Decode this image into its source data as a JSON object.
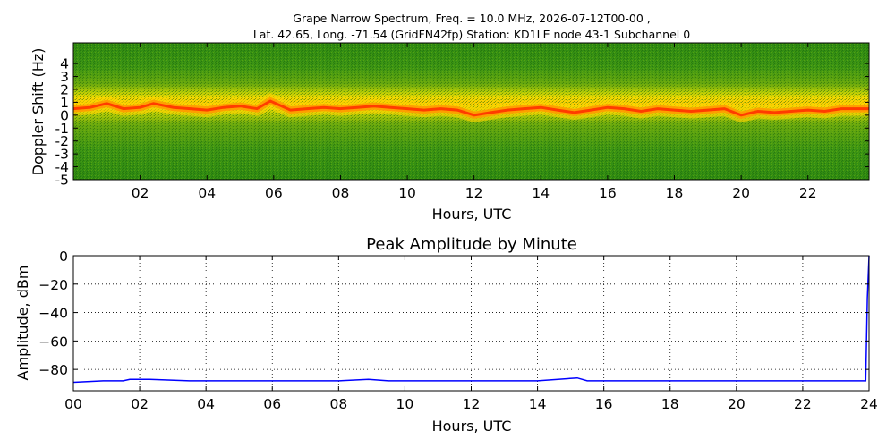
{
  "chart_data": [
    {
      "type": "heatmap",
      "title_line1": "Grape Narrow Spectrum, Freq. = 10.0 MHz, 2026-07-12T00-00 ,",
      "title_line2": "Lat.  42.65, Long. -71.54 (GridFN42fp) Station: KD1LE node 43-1 Subchannel 0",
      "xlabel": "Hours, UTC",
      "ylabel": "Doppler Shift (Hz)",
      "xlim": [
        0,
        23.83
      ],
      "ylim": [
        -5,
        5
      ],
      "x_ticks": [
        2,
        4,
        6,
        8,
        10,
        12,
        14,
        16,
        18,
        20,
        22
      ],
      "x_tick_labels": [
        "02",
        "04",
        "06",
        "08",
        "10",
        "12",
        "14",
        "16",
        "18",
        "20",
        "22"
      ],
      "y_ticks": [
        4,
        3,
        2,
        1,
        0,
        -1,
        -2,
        -3,
        -4,
        -5
      ],
      "y_tick_labels": [
        "4",
        "3",
        "2",
        "1",
        "0",
        "-1",
        "-2",
        "-3",
        "-4",
        "-5"
      ],
      "trace_hz": [
        [
          0,
          0.5
        ],
        [
          0.5,
          0.6
        ],
        [
          1,
          0.9
        ],
        [
          1.5,
          0.5
        ],
        [
          2,
          0.6
        ],
        [
          2.4,
          0.9
        ],
        [
          3,
          0.6
        ],
        [
          3.5,
          0.5
        ],
        [
          4,
          0.4
        ],
        [
          4.5,
          0.6
        ],
        [
          5,
          0.7
        ],
        [
          5.5,
          0.5
        ],
        [
          5.9,
          1.1
        ],
        [
          6.5,
          0.4
        ],
        [
          7,
          0.5
        ],
        [
          7.5,
          0.6
        ],
        [
          8,
          0.5
        ],
        [
          8.5,
          0.6
        ],
        [
          9,
          0.7
        ],
        [
          9.5,
          0.6
        ],
        [
          10,
          0.5
        ],
        [
          10.5,
          0.4
        ],
        [
          11,
          0.5
        ],
        [
          11.5,
          0.4
        ],
        [
          12,
          0.0
        ],
        [
          12.5,
          0.2
        ],
        [
          13,
          0.4
        ],
        [
          13.5,
          0.5
        ],
        [
          14,
          0.6
        ],
        [
          14.5,
          0.4
        ],
        [
          15,
          0.2
        ],
        [
          15.5,
          0.4
        ],
        [
          16,
          0.6
        ],
        [
          16.5,
          0.5
        ],
        [
          17,
          0.3
        ],
        [
          17.5,
          0.5
        ],
        [
          18,
          0.4
        ],
        [
          18.5,
          0.3
        ],
        [
          19,
          0.4
        ],
        [
          19.5,
          0.5
        ],
        [
          20,
          0.0
        ],
        [
          20.5,
          0.3
        ],
        [
          21,
          0.2
        ],
        [
          21.5,
          0.3
        ],
        [
          22,
          0.4
        ],
        [
          22.5,
          0.3
        ],
        [
          23,
          0.5
        ],
        [
          23.83,
          0.5
        ]
      ],
      "colors": {
        "background": "#2e8b10",
        "mid": "#c8d400",
        "high": "#ffd400",
        "peak": "#ff3c00"
      }
    },
    {
      "type": "line",
      "title": "Peak Amplitude by Minute",
      "xlabel": "Hours, UTC",
      "ylabel": "Amplitude, dBm",
      "xlim": [
        0,
        24
      ],
      "ylim": [
        -95,
        0
      ],
      "grid": true,
      "x_ticks": [
        0,
        2,
        4,
        6,
        8,
        10,
        12,
        14,
        16,
        18,
        20,
        22,
        24
      ],
      "x_tick_labels": [
        "00",
        "02",
        "04",
        "06",
        "08",
        "10",
        "12",
        "14",
        "16",
        "18",
        "20",
        "22",
        "24"
      ],
      "y_ticks": [
        0,
        -20,
        -40,
        -60,
        -80
      ],
      "y_tick_labels": [
        "0",
        "−20",
        "−40",
        "−60",
        "−80"
      ],
      "series": [
        {
          "color": "#0000ff",
          "x": [
            0,
            0.9,
            1.5,
            1.7,
            2.3,
            3.5,
            4.0,
            6.0,
            8.0,
            8.9,
            9.5,
            10.0,
            11.0,
            12.0,
            13.0,
            14.0,
            15.2,
            15.5,
            16.0,
            17.0,
            18.0,
            19.0,
            20.0,
            21.0,
            22.0,
            23.0,
            23.9,
            23.95,
            24.0
          ],
          "y": [
            -89,
            -88,
            -88,
            -87,
            -87,
            -88,
            -88,
            -88,
            -88,
            -87,
            -88,
            -88,
            -88,
            -88,
            -88,
            -88,
            -86,
            -88,
            -88,
            -88,
            -88,
            -88,
            -88,
            -88,
            -88,
            -88,
            -88,
            -30,
            0
          ]
        }
      ]
    }
  ]
}
